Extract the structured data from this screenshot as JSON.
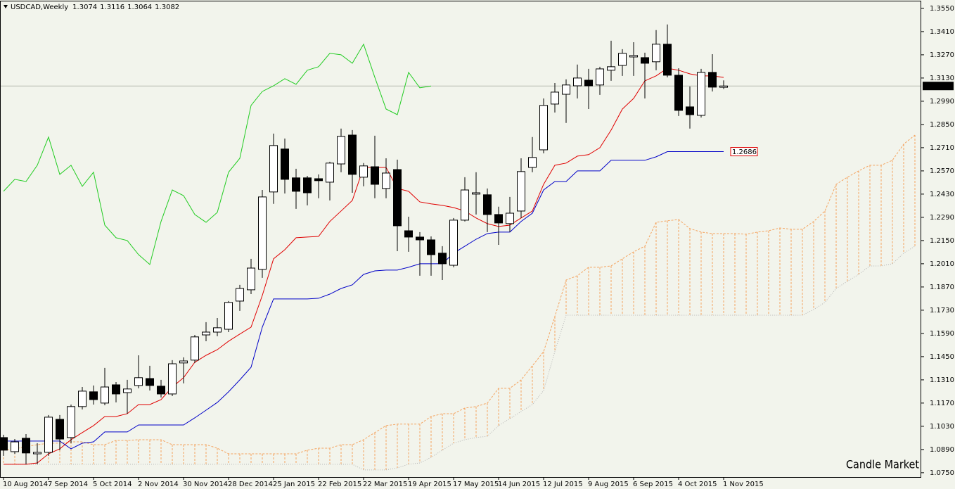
{
  "chart_data": {
    "type": "candlestick",
    "title": "USDCAD,Weekly",
    "watermark": "Candle Market",
    "categories": [
      "10 Aug 2014",
      null,
      null,
      null,
      "7 Sep 2014",
      null,
      null,
      null,
      "5 Oct 2014",
      null,
      null,
      null,
      "2 Nov 2014",
      null,
      null,
      null,
      "30 Nov 2014",
      null,
      null,
      null,
      "28 Dec 2014",
      null,
      null,
      null,
      "25 Jan 2015",
      null,
      null,
      null,
      "22 Feb 2015",
      null,
      null,
      null,
      "22 Mar 2015",
      null,
      null,
      null,
      "19 Apr 2015",
      null,
      null,
      null,
      "17 May 2015",
      null,
      null,
      null,
      "14 Jun 2015",
      null,
      null,
      null,
      "12 Jul 2015",
      null,
      null,
      null,
      "9 Aug 2015",
      null,
      null,
      null,
      "6 Sep 2015",
      null,
      null,
      null,
      "4 Oct 2015",
      null,
      null,
      null,
      "1 Nov 2015",
      null,
      null,
      null,
      null,
      null,
      null,
      null,
      null,
      null,
      null,
      null,
      null,
      null,
      null,
      null,
      null,
      null
    ],
    "open": [
      1.0962,
      1.0877,
      1.0958,
      1.0864,
      1.0873,
      1.1072,
      1.0962,
      1.1149,
      1.1238,
      1.117,
      1.128,
      1.1233,
      1.1276,
      1.1318,
      1.1272,
      1.1225,
      1.1412,
      1.1429,
      1.1581,
      1.1598,
      1.1615,
      1.1785,
      1.1853,
      1.1976,
      1.2443,
      1.2702,
      1.2528,
      1.2528,
      1.2523,
      1.2502,
      1.2612,
      1.2786,
      1.2532,
      1.2595,
      1.2464,
      1.2578,
      1.2209,
      1.2171,
      1.2154,
      1.2074,
      1.2001,
      1.2273,
      1.243,
      1.2426,
      1.2307,
      1.2252,
      1.2328,
      1.2591,
      1.2697,
      1.2973,
      1.3032,
      1.3083,
      1.3117,
      1.3088,
      1.3177,
      1.3206,
      1.3257,
      1.3253,
      1.3228,
      1.3334,
      1.3147,
      1.2956,
      1.2905,
      1.3164,
      1.3074,
      null,
      null,
      null,
      null,
      null,
      null,
      null,
      null,
      null,
      null,
      null,
      null,
      null,
      null,
      null,
      null,
      null
    ],
    "high": [
      1.0979,
      1.0953,
      1.0983,
      1.0928,
      1.1098,
      1.1098,
      1.1161,
      1.1267,
      1.1276,
      1.1382,
      1.1297,
      1.131,
      1.1458,
      1.1395,
      1.131,
      1.1429,
      1.1446,
      1.1581,
      1.1658,
      1.1683,
      1.1785,
      1.1883,
      1.204,
      1.2455,
      1.2795,
      1.2765,
      1.2583,
      1.254,
      1.2549,
      1.2625,
      1.2825,
      1.2816,
      1.2617,
      1.2782,
      1.2646,
      1.2638,
      1.2294,
      1.2201,
      1.2175,
      1.2116,
      1.2286,
      1.2532,
      1.2562,
      1.2464,
      1.2354,
      1.2413,
      1.2646,
      1.2774,
      1.3007,
      1.31,
      1.3122,
      1.3211,
      1.3185,
      1.3198,
      1.3355,
      1.3304,
      1.3346,
      1.3283,
      1.3419,
      1.3453,
      1.3189,
      1.3079,
      1.3185,
      1.3274,
      1.3116,
      null,
      null,
      null,
      null,
      null,
      null,
      null,
      null,
      null,
      null,
      null,
      null,
      null,
      null,
      null,
      null,
      null
    ],
    "low": [
      1.0852,
      1.0864,
      1.0801,
      1.0801,
      1.0852,
      1.0886,
      1.0928,
      1.1132,
      1.1161,
      1.1157,
      1.1174,
      1.1106,
      1.1259,
      1.1246,
      1.1204,
      1.1212,
      1.1289,
      1.1412,
      1.1543,
      1.1573,
      1.1598,
      1.1726,
      1.1827,
      1.1925,
      1.2371,
      1.2434,
      1.2341,
      1.2362,
      1.2405,
      1.2392,
      1.2562,
      1.2438,
      1.2477,
      1.2405,
      1.2405,
      1.2086,
      1.2082,
      1.1938,
      1.1938,
      1.1912,
      1.1989,
      1.2265,
      1.2307,
      1.2201,
      1.2124,
      1.2201,
      1.2286,
      1.2562,
      1.2676,
      1.2922,
      1.2859,
      1.3007,
      1.2943,
      1.3028,
      1.3113,
      1.3143,
      1.3143,
      1.3007,
      1.3177,
      1.3134,
      1.2901,
      1.2825,
      1.2892,
      1.3049,
      1.3064,
      null,
      null,
      null,
      null,
      null,
      null,
      null,
      null,
      null,
      null,
      null,
      null,
      null,
      null,
      null,
      null,
      null
    ],
    "close": [
      1.0886,
      1.0936,
      1.0869,
      1.0873,
      1.1085,
      1.0953,
      1.1149,
      1.1242,
      1.1191,
      1.1267,
      1.1225,
      1.1255,
      1.1323,
      1.1276,
      1.1225,
      1.1407,
      1.1424,
      1.1569,
      1.1598,
      1.1624,
      1.1777,
      1.1861,
      1.1984,
      1.2413,
      1.2723,
      1.2519,
      1.2447,
      1.2438,
      1.2511,
      1.2617,
      1.2778,
      1.2549,
      1.26,
      1.2489,
      1.2557,
      1.2239,
      1.2171,
      1.2154,
      1.2065,
      1.201,
      1.2273,
      1.2455,
      1.2438,
      1.2307,
      1.2256,
      1.2315,
      1.2566,
      1.2651,
      1.2965,
      1.3045,
      1.3088,
      1.313,
      1.3083,
      1.3185,
      1.3198,
      1.3279,
      1.3266,
      1.3219,
      1.3334,
      1.3147,
      1.2935,
      1.2909,
      1.3164,
      1.3075,
      1.3082,
      null,
      null,
      null,
      null,
      null,
      null,
      null,
      null,
      null,
      null,
      null,
      null,
      null,
      null,
      null,
      null,
      null
    ],
    "up_color": "#ffffff",
    "down_color": "#000000",
    "series": [
      {
        "color": "#e00000",
        "values": [
          1.0801,
          1.0801,
          1.0801,
          1.0809,
          1.0864,
          1.0894,
          1.0949,
          1.0992,
          1.1034,
          1.1089,
          1.1089,
          1.1106,
          1.1161,
          1.1161,
          1.1191,
          1.1267,
          1.1323,
          1.1416,
          1.1458,
          1.1492,
          1.1543,
          1.1586,
          1.1628,
          1.1819,
          1.204,
          1.2095,
          1.2167,
          1.2171,
          1.2175,
          1.2265,
          1.2328,
          1.2392,
          1.2591,
          1.2591,
          1.2591,
          1.2464,
          1.2447,
          1.2383,
          1.2371,
          1.2362,
          1.2349,
          1.2328,
          1.2286,
          1.2252,
          1.2235,
          1.2243,
          1.2286,
          1.2328,
          1.2489,
          1.2604,
          1.2617,
          1.2659,
          1.2668,
          1.271,
          1.2816,
          1.2943,
          1.3007,
          1.3113,
          1.3143,
          1.3189,
          1.3177,
          1.3155,
          1.3143,
          1.3143,
          1.3134,
          null,
          null,
          null,
          null,
          null,
          null,
          null,
          null,
          null,
          null,
          null,
          null,
          null,
          null,
          null,
          null,
          null
        ]
      },
      {
        "color": "#0000c8",
        "last_label": true,
        "values": [
          1.0941,
          1.0941,
          1.0941,
          1.0941,
          1.0941,
          1.0941,
          1.0894,
          1.0928,
          1.0936,
          1.0996,
          1.0996,
          1.0996,
          1.1038,
          1.1038,
          1.1038,
          1.1038,
          1.1038,
          1.1081,
          1.1127,
          1.1174,
          1.1238,
          1.131,
          1.1386,
          1.1628,
          1.1798,
          1.1798,
          1.1798,
          1.1798,
          1.1802,
          1.1827,
          1.1861,
          1.1883,
          1.1946,
          1.1967,
          1.1972,
          1.1972,
          1.1989,
          1.201,
          1.201,
          1.201,
          1.2074,
          1.2116,
          1.2158,
          1.2192,
          1.2201,
          1.2201,
          1.2265,
          1.2315,
          1.2455,
          1.2506,
          1.2506,
          1.257,
          1.257,
          1.257,
          1.2634,
          1.2634,
          1.2634,
          1.2634,
          1.2655,
          1.2686,
          1.2686,
          1.2686,
          1.2686,
          1.2686,
          1.2686,
          null,
          null,
          null,
          null,
          null,
          null,
          null,
          null,
          null,
          null,
          null,
          null,
          null,
          null,
          null,
          null,
          null
        ]
      },
      {
        "color": "#22cc22",
        "values": [
          1.2447,
          1.2519,
          1.2506,
          1.2604,
          1.2774,
          1.2549,
          1.2604,
          1.2477,
          1.2562,
          1.2243,
          1.2167,
          1.215,
          1.2065,
          1.2006,
          1.2265,
          1.2455,
          1.2421,
          1.2307,
          1.226,
          1.232,
          1.2562,
          1.2646,
          1.2965,
          1.3049,
          1.3083,
          1.3126,
          1.3092,
          1.3177,
          1.3198,
          1.3279,
          1.327,
          1.3219,
          1.3334,
          1.3134,
          1.2943,
          1.2909,
          1.3164,
          1.3071,
          1.3082,
          null,
          null,
          null,
          null,
          null,
          null,
          null,
          null,
          null,
          null,
          null,
          null,
          null,
          null,
          null,
          null,
          null,
          null,
          null,
          null,
          null,
          null,
          null,
          null,
          null,
          null,
          null,
          null,
          null,
          null,
          null,
          null,
          null,
          null,
          null,
          null,
          null,
          null,
          null,
          null,
          null,
          null,
          null
        ]
      }
    ],
    "cloud": {
      "color": "#f4a460",
      "edge_color": "#b4b4b4",
      "upper": [
        1.0886,
        1.0894,
        1.0907,
        1.0919,
        1.0928,
        1.0928,
        1.0936,
        1.0936,
        1.0919,
        1.0919,
        1.0945,
        1.0945,
        1.0949,
        1.0949,
        1.0949,
        1.0919,
        1.0919,
        1.0919,
        1.0919,
        1.0898,
        1.0864,
        1.0864,
        1.0864,
        1.0864,
        1.0864,
        1.0864,
        1.0864,
        1.0886,
        1.0898,
        1.0898,
        1.0919,
        1.0919,
        1.0949,
        1.0992,
        1.1034,
        1.1043,
        1.1043,
        1.1043,
        1.1089,
        1.1106,
        1.1106,
        1.114,
        1.1149,
        1.117,
        1.1259,
        1.1259,
        1.131,
        1.1395,
        1.148,
        1.1692,
        1.1912,
        1.1938,
        1.1989,
        1.1989,
        1.1997,
        1.204,
        1.2082,
        1.2116,
        1.226,
        1.2269,
        1.2277,
        1.2222,
        1.2201,
        1.2192,
        1.2192,
        1.2192,
        1.2188,
        1.2201,
        1.2209,
        1.2226,
        1.2218,
        1.2218,
        1.2265,
        1.2328,
        1.2489,
        1.2532,
        1.257,
        1.2604,
        1.2604,
        1.2634,
        1.2731,
        1.2786
      ],
      "lower": [
        1.0801,
        1.0801,
        1.0801,
        1.0801,
        1.0801,
        1.0801,
        1.0801,
        1.0801,
        1.0801,
        1.0801,
        1.0801,
        1.0801,
        1.0801,
        1.0801,
        1.0801,
        1.0801,
        1.0801,
        1.0801,
        1.0801,
        1.0801,
        1.0801,
        1.0801,
        1.0801,
        1.0801,
        1.0801,
        1.0801,
        1.0801,
        1.0801,
        1.0801,
        1.0801,
        1.0801,
        1.0801,
        1.0767,
        1.0767,
        1.0767,
        1.0779,
        1.0801,
        1.0809,
        1.0843,
        1.0886,
        1.0928,
        1.0949,
        1.0962,
        1.097,
        1.1034,
        1.1076,
        1.1119,
        1.1161,
        1.1246,
        1.148,
        1.17,
        1.17,
        1.17,
        1.17,
        1.17,
        1.17,
        1.17,
        1.17,
        1.17,
        1.17,
        1.17,
        1.17,
        1.17,
        1.17,
        1.17,
        1.17,
        1.17,
        1.17,
        1.17,
        1.17,
        1.17,
        1.17,
        1.1734,
        1.1777,
        1.1861,
        1.1904,
        1.1946,
        1.1997,
        1.1997,
        1.201,
        1.2074,
        1.2116
      ]
    },
    "ylim": [
      1.0724,
      1.3592
    ],
    "yticks": [
      {
        "value": 1.355,
        "label": "1.3550"
      },
      {
        "value": 1.341,
        "label": "1.3410"
      },
      {
        "value": 1.327,
        "label": "1.3270"
      },
      {
        "value": 1.313,
        "label": "1.3130"
      },
      {
        "value": 1.299,
        "label": "1.2990"
      },
      {
        "value": 1.285,
        "label": "1.2850"
      },
      {
        "value": 1.271,
        "label": "1.2710"
      },
      {
        "value": 1.257,
        "label": "1.2570"
      },
      {
        "value": 1.243,
        "label": "1.2430"
      },
      {
        "value": 1.229,
        "label": "1.2290"
      },
      {
        "value": 1.215,
        "label": "1.2150"
      },
      {
        "value": 1.201,
        "label": "1.2010"
      },
      {
        "value": 1.187,
        "label": "1.1870"
      },
      {
        "value": 1.173,
        "label": "1.1730"
      },
      {
        "value": 1.159,
        "label": "1.1590"
      },
      {
        "value": 1.145,
        "label": "1.1450"
      },
      {
        "value": 1.131,
        "label": "1.1310"
      },
      {
        "value": 1.117,
        "label": "1.1170"
      },
      {
        "value": 1.103,
        "label": "1.1030"
      },
      {
        "value": 1.089,
        "label": "1.0890"
      },
      {
        "value": 1.075,
        "label": "1.0750"
      }
    ],
    "grid": false
  }
}
